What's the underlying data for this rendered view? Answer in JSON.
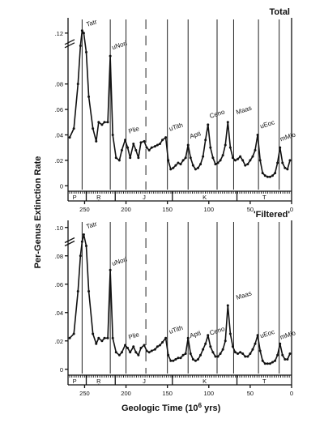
{
  "figure": {
    "ylabel": "Per-Genus Extinction Rate",
    "xlabel": "Geologic  Time   (10",
    "xlabel_sup": "6",
    "xlabel_tail": " yrs)"
  },
  "chart_data": [
    {
      "type": "line",
      "title": "Total",
      "xlim": [
        270,
        0
      ],
      "ylim": [
        -0.003,
        0.132
      ],
      "yticks": [
        0,
        0.02,
        0.04,
        0.06,
        0.08,
        0.12
      ],
      "ytick_labels": [
        "0",
        ".02",
        ".04",
        ".06",
        ".08",
        ".12"
      ],
      "xticks": [
        250,
        200,
        150,
        100,
        50,
        0
      ],
      "xtick_labels": [
        "250",
        "200",
        "150",
        "100",
        "50",
        "0"
      ],
      "event_lines": [
        253,
        219,
        200,
        176,
        150,
        125,
        90,
        70,
        40,
        15
      ],
      "dashed_event_lines": [
        176
      ],
      "x": [
        268,
        263,
        258,
        255,
        253,
        251,
        248,
        245,
        240,
        236,
        233,
        229,
        226,
        222,
        219,
        216,
        212,
        208,
        205,
        201,
        198,
        195,
        191,
        188,
        185,
        182,
        178,
        175,
        172,
        169,
        165,
        162,
        159,
        156,
        152,
        149,
        146,
        143,
        140,
        137,
        134,
        131,
        128,
        125,
        122,
        119,
        116,
        113,
        110,
        107,
        104,
        101,
        98,
        95,
        92,
        89,
        86,
        83,
        80,
        77,
        74,
        71,
        68,
        65,
        62,
        59,
        56,
        53,
        50,
        47,
        44,
        41,
        38,
        35,
        32,
        29,
        26,
        23,
        20,
        17,
        14,
        11,
        8,
        5,
        2
      ],
      "y": [
        0.038,
        0.045,
        0.08,
        0.11,
        0.122,
        0.12,
        0.105,
        0.07,
        0.045,
        0.035,
        0.05,
        0.048,
        0.05,
        0.05,
        0.102,
        0.04,
        0.022,
        0.02,
        0.028,
        0.036,
        0.03,
        0.022,
        0.033,
        0.028,
        0.022,
        0.034,
        0.035,
        0.03,
        0.028,
        0.03,
        0.031,
        0.032,
        0.033,
        0.036,
        0.038,
        0.02,
        0.013,
        0.014,
        0.016,
        0.018,
        0.017,
        0.02,
        0.022,
        0.032,
        0.022,
        0.016,
        0.013,
        0.014,
        0.017,
        0.023,
        0.036,
        0.048,
        0.03,
        0.022,
        0.017,
        0.018,
        0.02,
        0.024,
        0.032,
        0.05,
        0.03,
        0.022,
        0.02,
        0.021,
        0.023,
        0.02,
        0.016,
        0.017,
        0.02,
        0.023,
        0.028,
        0.04,
        0.02,
        0.01,
        0.008,
        0.007,
        0.007,
        0.008,
        0.01,
        0.018,
        0.03,
        0.018,
        0.014,
        0.013,
        0.02
      ],
      "annotations": [
        {
          "label": "Tatr",
          "x": 247,
          "y": 0.125
        },
        {
          "label": "uNori",
          "x": 216,
          "y": 0.107
        },
        {
          "label": "Plie",
          "x": 196,
          "y": 0.041
        },
        {
          "label": "uTith",
          "x": 147,
          "y": 0.043
        },
        {
          "label": "Apti",
          "x": 122,
          "y": 0.037
        },
        {
          "label": "Ceno",
          "x": 98,
          "y": 0.053
        },
        {
          "label": "Maas",
          "x": 66,
          "y": 0.056
        },
        {
          "label": "uEoc",
          "x": 37,
          "y": 0.045
        },
        {
          "label": "mMio",
          "x": 13,
          "y": 0.035
        }
      ],
      "axis_break_y": 0.113,
      "periods": [
        "P",
        "Ŗ",
        "J",
        "K",
        "T"
      ]
    },
    {
      "type": "line",
      "title": "'Filtered'",
      "xlim": [
        270,
        0
      ],
      "ylim": [
        -0.003,
        0.105
      ],
      "yticks": [
        0,
        0.02,
        0.04,
        0.06,
        0.08,
        0.1
      ],
      "ytick_labels": [
        "0",
        ".02",
        ".04",
        ".06",
        ".08",
        ".10"
      ],
      "xticks": [
        250,
        200,
        150,
        100,
        50,
        0
      ],
      "xtick_labels": [
        "250",
        "200",
        "150",
        "100",
        "50",
        "0"
      ],
      "event_lines": [
        253,
        219,
        200,
        176,
        150,
        125,
        90,
        70,
        40,
        15
      ],
      "dashed_event_lines": [
        176
      ],
      "x": [
        268,
        263,
        258,
        255,
        253,
        251,
        248,
        245,
        240,
        236,
        233,
        229,
        226,
        222,
        219,
        216,
        212,
        208,
        205,
        201,
        198,
        195,
        191,
        188,
        185,
        182,
        178,
        175,
        172,
        169,
        165,
        162,
        159,
        156,
        152,
        149,
        146,
        143,
        140,
        137,
        134,
        131,
        128,
        125,
        122,
        119,
        116,
        113,
        110,
        107,
        104,
        101,
        98,
        95,
        92,
        89,
        86,
        83,
        80,
        77,
        74,
        71,
        68,
        65,
        62,
        59,
        56,
        53,
        50,
        47,
        44,
        41,
        38,
        35,
        32,
        29,
        26,
        23,
        20,
        17,
        14,
        11,
        8,
        5,
        2
      ],
      "y": [
        0.022,
        0.025,
        0.055,
        0.08,
        0.09,
        0.095,
        0.087,
        0.055,
        0.025,
        0.018,
        0.022,
        0.02,
        0.022,
        0.022,
        0.07,
        0.022,
        0.012,
        0.01,
        0.012,
        0.017,
        0.015,
        0.012,
        0.016,
        0.012,
        0.01,
        0.015,
        0.017,
        0.013,
        0.012,
        0.013,
        0.014,
        0.016,
        0.017,
        0.019,
        0.022,
        0.01,
        0.006,
        0.006,
        0.007,
        0.008,
        0.008,
        0.01,
        0.011,
        0.022,
        0.011,
        0.007,
        0.006,
        0.007,
        0.01,
        0.014,
        0.018,
        0.024,
        0.016,
        0.012,
        0.009,
        0.009,
        0.011,
        0.014,
        0.02,
        0.045,
        0.025,
        0.016,
        0.012,
        0.011,
        0.012,
        0.011,
        0.009,
        0.009,
        0.011,
        0.014,
        0.018,
        0.024,
        0.013,
        0.006,
        0.004,
        0.004,
        0.004,
        0.005,
        0.006,
        0.01,
        0.018,
        0.01,
        0.007,
        0.007,
        0.011
      ],
      "annotations": [
        {
          "label": "Tatr",
          "x": 247,
          "y": 0.099
        },
        {
          "label": "uNori",
          "x": 216,
          "y": 0.073
        },
        {
          "label": "Plie",
          "x": 196,
          "y": 0.021
        },
        {
          "label": "uTith",
          "x": 147,
          "y": 0.025
        },
        {
          "label": "Apti",
          "x": 122,
          "y": 0.022
        },
        {
          "label": "Ceno",
          "x": 98,
          "y": 0.024
        },
        {
          "label": "Maas",
          "x": 66,
          "y": 0.049
        },
        {
          "label": "uEoc",
          "x": 37,
          "y": 0.022
        },
        {
          "label": "mMio",
          "x": 13,
          "y": 0.021
        }
      ],
      "axis_break_y": 0.091,
      "periods": [
        "P",
        "Ŗ",
        "J",
        "K",
        "T"
      ]
    }
  ]
}
